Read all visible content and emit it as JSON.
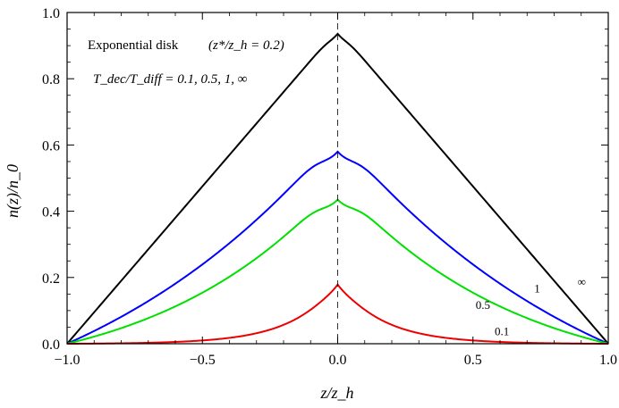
{
  "chart_data": {
    "type": "line",
    "title": "",
    "xlabel": "z/z_h",
    "ylabel": "n(z)/n_0",
    "xlim": [
      -1.0,
      1.0
    ],
    "ylim": [
      0.0,
      1.0
    ],
    "xticks": [
      -1.0,
      -0.5,
      0.0,
      0.5,
      1.0
    ],
    "xtick_labels": [
      "−1.0",
      "−0.5",
      "0.0",
      "0.5",
      "1.0"
    ],
    "yticks": [
      0.0,
      0.2,
      0.4,
      0.6,
      0.8,
      1.0
    ],
    "ytick_labels": [
      "0.0",
      "0.2",
      "0.4",
      "0.6",
      "0.8",
      "1.0"
    ],
    "grid": false,
    "annotations": {
      "line1": "Exponential disk",
      "line1_param": "(z*/z_h = 0.2)",
      "line2": "T_dec/T_diff = 0.1, 0.5, 1, ∞"
    },
    "reference_line": {
      "x": 0.0,
      "style": "dashed"
    },
    "series": [
      {
        "name": "∞",
        "color": "#000000",
        "peak": 0.95
      },
      {
        "name": "1",
        "color": "#0000ff",
        "peak": 0.58
      },
      {
        "name": "0.5",
        "color": "#00e000",
        "peak": 0.435
      },
      {
        "name": "0.1",
        "color": "#ee0000",
        "peak": 0.182
      }
    ]
  }
}
